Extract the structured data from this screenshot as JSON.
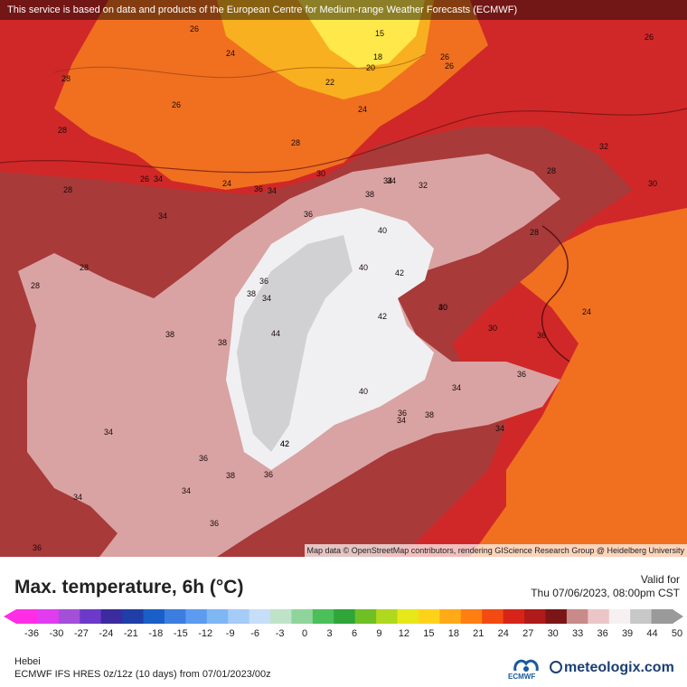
{
  "header": {
    "notice": "This service is based on data and products of the European Centre for Medium-range Weather Forecasts (ECMWF)"
  },
  "map": {
    "attribution": "Map data © OpenStreetMap contributors, rendering GIScience Research Group @ Heidelberg University",
    "labels": [
      "26",
      "24",
      "15",
      "18",
      "20",
      "26",
      "28",
      "26",
      "22",
      "24",
      "26",
      "28",
      "28",
      "26",
      "32",
      "26",
      "34",
      "28",
      "28",
      "30",
      "34",
      "30",
      "24",
      "38",
      "36",
      "34",
      "32",
      "34",
      "36",
      "34",
      "28",
      "34",
      "40",
      "42",
      "38",
      "42",
      "40",
      "36",
      "40",
      "28",
      "30",
      "24",
      "38",
      "44",
      "28",
      "30",
      "36",
      "34",
      "42",
      "36",
      "40",
      "38",
      "36",
      "38",
      "34",
      "34",
      "42",
      "34",
      "36",
      "36",
      "34",
      "36",
      "34",
      "36",
      "38"
    ],
    "colors": {
      "hot_core": "#f0f0f2",
      "very_hot": "#d9a3a3",
      "hot": "#a83a3a",
      "warm": "#d02828",
      "mild": "#f07020",
      "cool": "#f8b020",
      "cold": "#ffe84a"
    }
  },
  "legend": {
    "title": "Max. temperature, 6h (°C)",
    "valid_label": "Valid for",
    "valid_time": "Thu 07/06/2023, 08:00pm CST",
    "ticks": [
      "-36",
      "-30",
      "-27",
      "-24",
      "-21",
      "-18",
      "-15",
      "-12",
      "-9",
      "-6",
      "-3",
      "0",
      "3",
      "6",
      "9",
      "12",
      "15",
      "18",
      "21",
      "24",
      "27",
      "30",
      "33",
      "36",
      "39",
      "44",
      "50"
    ],
    "colors": [
      "#ff2ee6",
      "#e23cf0",
      "#a34fd8",
      "#6c3ac8",
      "#3b2b9e",
      "#1f3ea8",
      "#1a5ec8",
      "#3b7ee0",
      "#5c9bf0",
      "#7fb6f4",
      "#a4ccf6",
      "#c6def8",
      "#bfe3c8",
      "#8fd49a",
      "#4bbf5a",
      "#2fa53a",
      "#6fc025",
      "#b0d81c",
      "#e6e818",
      "#ffd21a",
      "#ffaa16",
      "#ff7e12",
      "#f24a10",
      "#d82418",
      "#b01a1a",
      "#7c1616",
      "#c98a8a",
      "#ecc6c6",
      "#f6f0f0",
      "#c8c8c8",
      "#9a9a9a"
    ]
  },
  "footer": {
    "region": "Hebei",
    "model": "ECMWF IFS HRES 0z/12z (10 days) from 07/01/2023/00z",
    "ecmwf": "ECMWF",
    "brand": "meteologix.com"
  }
}
